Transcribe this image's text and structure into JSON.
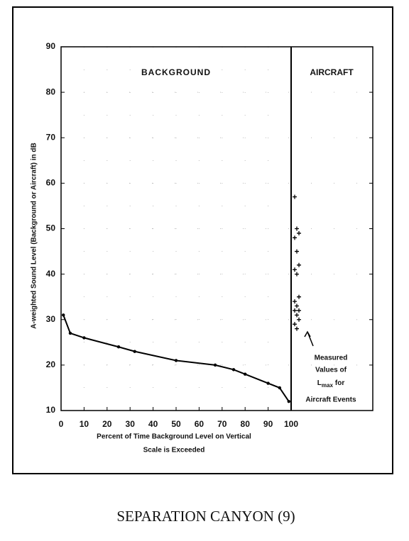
{
  "chart_data": {
    "type": "line",
    "ylabel": "A-weighted Sound Level (Background or Aircraft) in dB",
    "xlabel": [
      "Percent of Time Background Level on Vertical",
      "Scale is Exceeded"
    ],
    "xlim": [
      0,
      100
    ],
    "xticks": [
      0,
      10,
      20,
      30,
      40,
      50,
      60,
      70,
      80,
      90,
      100
    ],
    "ylim": [
      10,
      90
    ],
    "yticks": [
      10,
      20,
      30,
      40,
      50,
      60,
      70,
      80,
      90
    ],
    "grid": true,
    "series": [
      {
        "name": "BACKGROUND",
        "color": "#000000",
        "x": [
          1,
          4,
          10,
          25,
          32,
          50,
          67,
          75,
          80,
          90,
          95,
          99
        ],
        "values": [
          31,
          27,
          26,
          24,
          23,
          21,
          20,
          19,
          18,
          16,
          15,
          12
        ]
      },
      {
        "name": "AIRCRAFT",
        "color": "#000000",
        "values": [
          57,
          50,
          49,
          48,
          45,
          42,
          41,
          40,
          35,
          34,
          33,
          32,
          32,
          31,
          30,
          29,
          28
        ]
      }
    ],
    "annotation": [
      "Measured",
      "Values of",
      "L",
      "max",
      "for",
      "Aircraft Events"
    ],
    "caption": "SEPARATION CANYON (9)"
  }
}
